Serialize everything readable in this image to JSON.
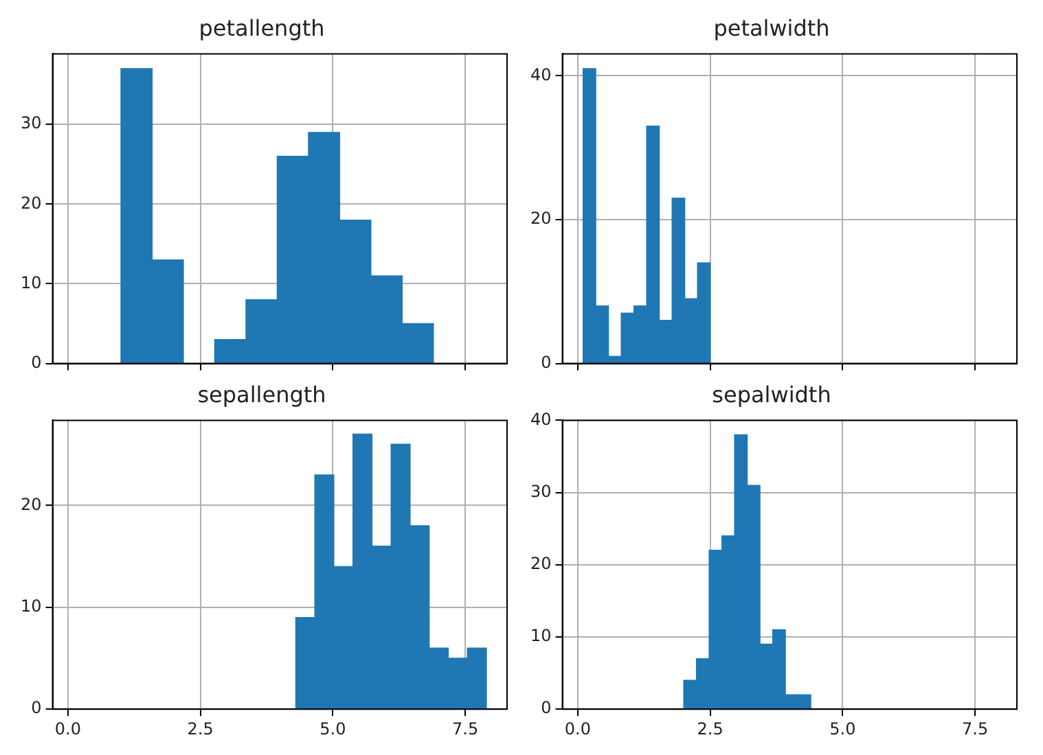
{
  "chart_data": [
    {
      "type": "histogram",
      "title": "petallength",
      "bins": [
        1.0,
        1.59,
        2.18,
        2.77,
        3.36,
        3.95,
        4.54,
        5.13,
        5.72,
        6.31,
        6.9
      ],
      "values": [
        37,
        13,
        0,
        3,
        8,
        26,
        29,
        18,
        11,
        5
      ],
      "color": "#1f77b4",
      "xlim": [
        -0.29,
        8.29
      ],
      "xticks": [
        {
          "value": 0,
          "label": null
        },
        {
          "value": 2.5,
          "label": null
        },
        {
          "value": 5,
          "label": null
        },
        {
          "value": 7.5,
          "label": null
        }
      ],
      "ylim": [
        0,
        38.85
      ],
      "yticks": [
        0,
        10,
        20,
        30
      ],
      "grid": true,
      "tick_labels": "y"
    },
    {
      "type": "histogram",
      "title": "petalwidth",
      "bins": [
        0.1,
        0.34,
        0.58,
        0.82,
        1.06,
        1.3,
        1.54,
        1.78,
        2.02,
        2.26,
        2.5
      ],
      "values": [
        41,
        8,
        1,
        7,
        8,
        33,
        6,
        23,
        9,
        14
      ],
      "color": "#1f77b4",
      "xlim": [
        -0.29,
        8.29
      ],
      "xticks": [
        {
          "value": 0,
          "label": null
        },
        {
          "value": 2.5,
          "label": null
        },
        {
          "value": 5,
          "label": null
        },
        {
          "value": 7.5,
          "label": null
        }
      ],
      "ylim": [
        0,
        43.05
      ],
      "yticks": [
        0,
        20,
        40
      ],
      "grid": true,
      "tick_labels": "y"
    },
    {
      "type": "histogram",
      "title": "sepallength",
      "bins": [
        4.3,
        4.66,
        5.02,
        5.38,
        5.74,
        6.1,
        6.46,
        6.82,
        7.18,
        7.54,
        7.9
      ],
      "values": [
        9,
        23,
        14,
        27,
        16,
        26,
        18,
        6,
        5,
        6
      ],
      "color": "#1f77b4",
      "xlim": [
        -0.29,
        8.29
      ],
      "xticks": [
        {
          "value": 0,
          "label": "0.0"
        },
        {
          "value": 2.5,
          "label": "2.5"
        },
        {
          "value": 5,
          "label": "5.0"
        },
        {
          "value": 7.5,
          "label": "7.5"
        }
      ],
      "ylim": [
        0,
        28.35
      ],
      "yticks": [
        0,
        10,
        20
      ],
      "grid": true
    },
    {
      "type": "histogram",
      "title": "sepalwidth",
      "bins": [
        2.0,
        2.24,
        2.48,
        2.72,
        2.96,
        3.2,
        3.44,
        3.68,
        3.92,
        4.16,
        4.4
      ],
      "values": [
        4,
        7,
        22,
        24,
        38,
        31,
        9,
        11,
        2,
        2
      ],
      "color": "#1f77b4",
      "xlim": [
        -0.29,
        8.29
      ],
      "xticks": [
        {
          "value": 0,
          "label": "0.0"
        },
        {
          "value": 2.5,
          "label": "2.5"
        },
        {
          "value": 5,
          "label": "5.0"
        },
        {
          "value": 7.5,
          "label": "7.5"
        }
      ],
      "ylim": [
        0,
        40
      ],
      "yticks": [
        0,
        10,
        20,
        30,
        40
      ],
      "grid": true
    }
  ]
}
